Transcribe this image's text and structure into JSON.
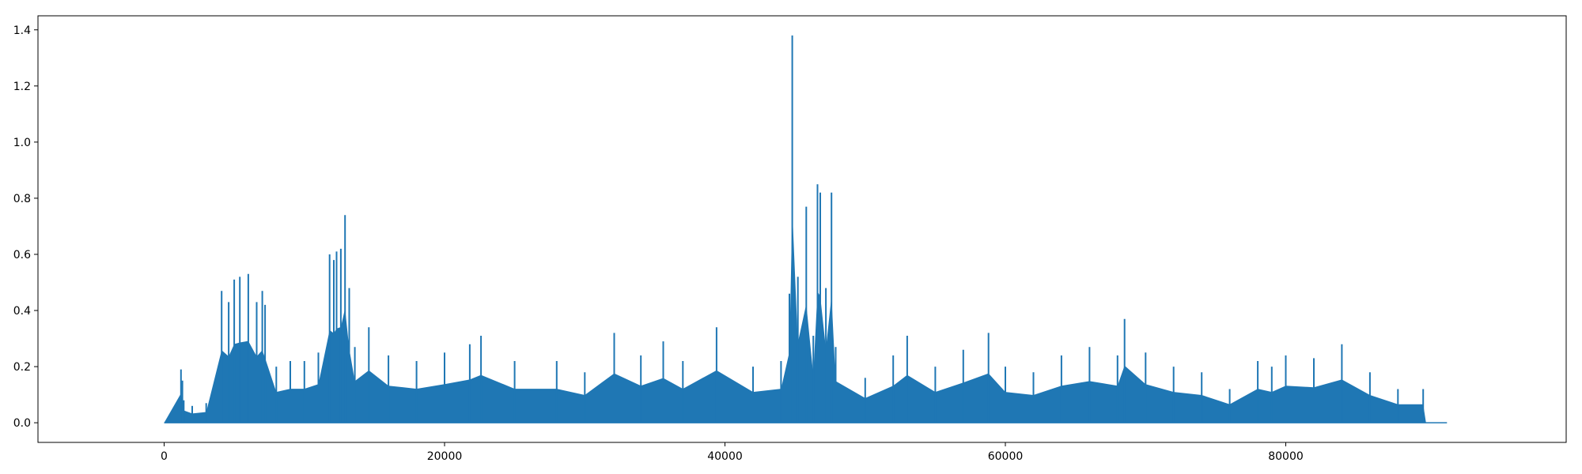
{
  "chart_data": {
    "type": "line",
    "title": "",
    "xlabel": "",
    "ylabel": "",
    "xlim": [
      -9000,
      100000
    ],
    "ylim": [
      -0.07,
      1.45
    ],
    "grid": false,
    "legend": "none",
    "color": "#1f77b4",
    "xticks": [
      0,
      20000,
      40000,
      60000,
      80000
    ],
    "xtick_labels": [
      "0",
      "20000",
      "40000",
      "60000",
      "80000"
    ],
    "yticks": [
      0.0,
      0.2,
      0.4,
      0.6,
      0.8,
      1.0,
      1.2,
      1.4
    ],
    "ytick_labels": [
      "0.0",
      "0.2",
      "0.4",
      "0.6",
      "0.8",
      "1.0",
      "1.2",
      "1.4"
    ],
    "series": [
      {
        "x": [
          0,
          1200,
          1300,
          1400,
          2000,
          3000,
          4100,
          4600,
          5000,
          5400,
          6000,
          6600,
          7000,
          7200,
          8000,
          9000,
          10000,
          11000,
          11800,
          12100,
          12300,
          12600,
          12900,
          13200,
          13600,
          14600,
          16000,
          18000,
          20000,
          21800,
          22600,
          25000,
          28000,
          30000,
          32100,
          34000,
          35600,
          37000,
          39400,
          42000,
          44000,
          44600,
          44800,
          45200,
          45800,
          46300,
          46600,
          46800,
          47200,
          47600,
          47900,
          50000,
          52000,
          53000,
          55000,
          57000,
          58800,
          60000,
          62000,
          64000,
          66000,
          68000,
          68500,
          70000,
          72000,
          74000,
          76000,
          78000,
          79000,
          80000,
          82000,
          84000,
          86000,
          88000,
          89800,
          90000,
          91500
        ],
        "y": [
          0.0,
          0.19,
          0.15,
          0.08,
          0.06,
          0.07,
          0.47,
          0.43,
          0.51,
          0.52,
          0.53,
          0.43,
          0.47,
          0.42,
          0.2,
          0.22,
          0.22,
          0.25,
          0.6,
          0.58,
          0.61,
          0.62,
          0.74,
          0.48,
          0.27,
          0.34,
          0.24,
          0.22,
          0.25,
          0.28,
          0.31,
          0.22,
          0.22,
          0.18,
          0.32,
          0.24,
          0.29,
          0.22,
          0.34,
          0.2,
          0.22,
          0.46,
          1.38,
          0.52,
          0.77,
          0.31,
          0.85,
          0.82,
          0.48,
          0.82,
          0.27,
          0.16,
          0.24,
          0.31,
          0.2,
          0.26,
          0.32,
          0.2,
          0.18,
          0.24,
          0.27,
          0.24,
          0.37,
          0.25,
          0.2,
          0.18,
          0.12,
          0.22,
          0.2,
          0.24,
          0.23,
          0.28,
          0.18,
          0.12,
          0.12,
          0.0,
          0.0
        ]
      }
    ]
  }
}
